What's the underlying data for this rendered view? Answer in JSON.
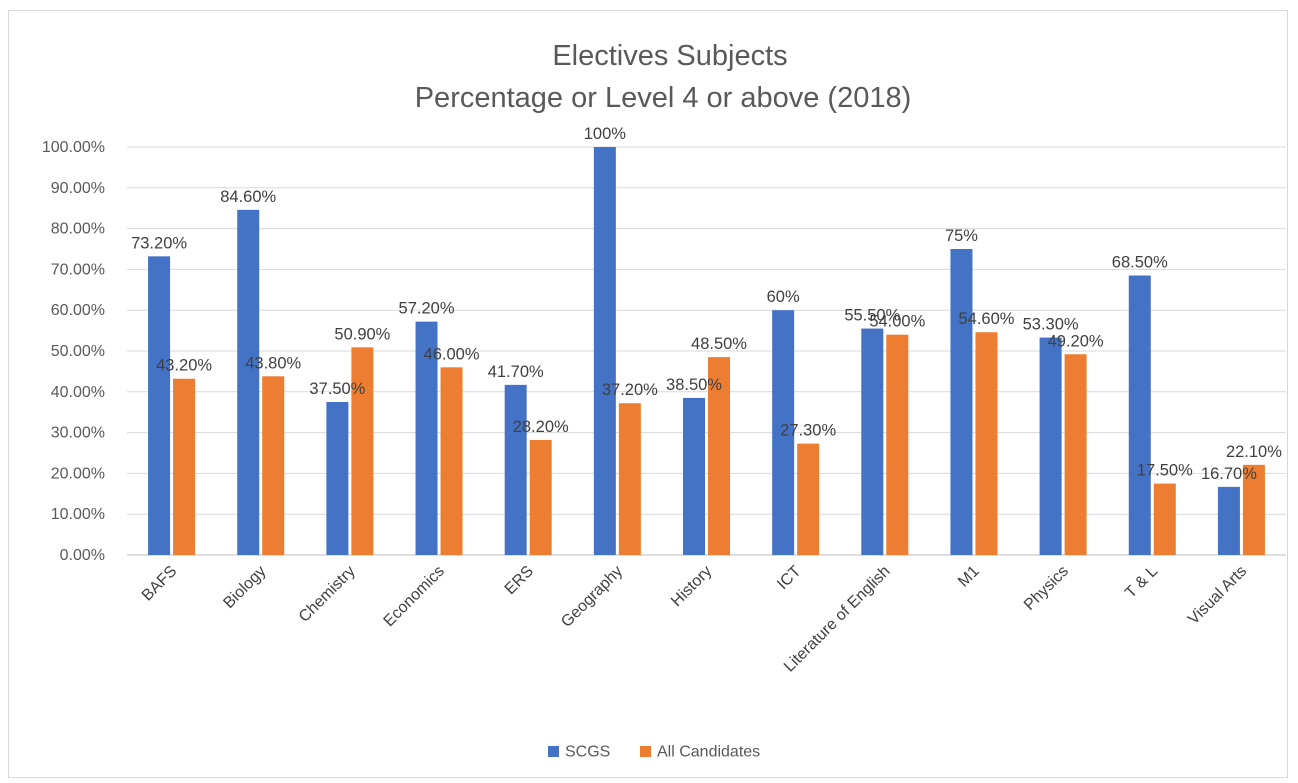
{
  "chart_data": {
    "type": "bar",
    "title": "Electives Subjects",
    "subtitle": "Percentage or Level 4 or above (2018)",
    "categories": [
      "BAFS",
      "Biology",
      "Chemistry",
      "Economics",
      "ERS",
      "Geography",
      "History",
      "ICT",
      "Literature of English",
      "M1",
      "Physics",
      "T & L",
      "Visual Arts"
    ],
    "series": [
      {
        "name": "SCGS",
        "color": "#4472c4",
        "values": [
          73.2,
          84.6,
          37.5,
          57.2,
          41.7,
          100,
          38.5,
          60,
          55.5,
          75,
          53.3,
          68.5,
          16.7
        ],
        "labels": [
          "73.20%",
          "84.60%",
          "37.50%",
          "57.20%",
          "41.70%",
          "100%",
          "38.50%",
          "60%",
          "55.50%",
          "75%",
          "53.30%",
          "68.50%",
          "16.70%"
        ]
      },
      {
        "name": "All Candidates",
        "color": "#ed7d31",
        "values": [
          43.2,
          43.8,
          50.9,
          46.0,
          28.2,
          37.2,
          48.5,
          27.3,
          54.0,
          54.6,
          49.2,
          17.5,
          22.1
        ],
        "labels": [
          "43.20%",
          "43.80%",
          "50.90%",
          "46.00%",
          "28.20%",
          "37.20%",
          "48.50%",
          "27.30%",
          "54.00%",
          "54.60%",
          "49.20%",
          "17.50%",
          "22.10%"
        ]
      }
    ],
    "ylim": [
      0,
      100
    ],
    "yticks": [
      "0.00%",
      "10.00%",
      "20.00%",
      "30.00%",
      "40.00%",
      "50.00%",
      "60.00%",
      "70.00%",
      "80.00%",
      "90.00%",
      "100.00%"
    ],
    "grid": true,
    "legend_position": "bottom"
  }
}
